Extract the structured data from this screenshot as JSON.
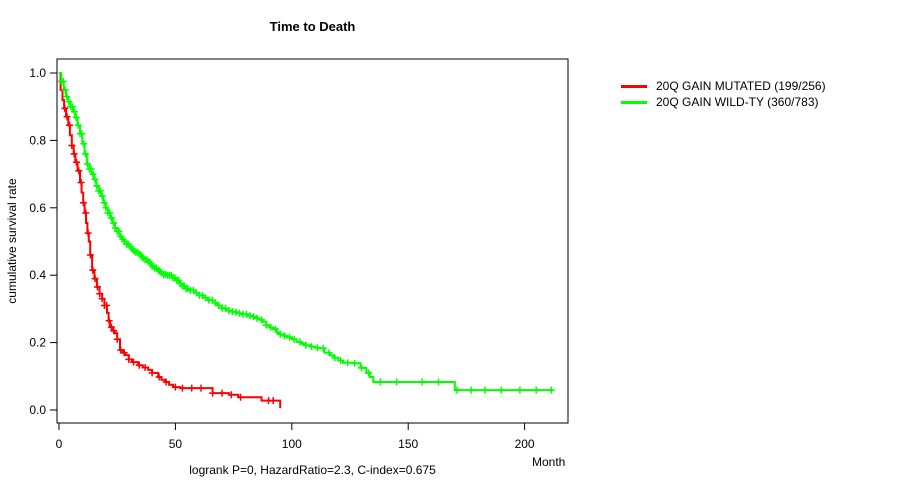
{
  "chart_data": {
    "type": "line",
    "subtype": "kaplan-meier-step",
    "title": "Time to Death",
    "xlabel": "Month",
    "ylabel": "cumulative survival rate",
    "caption": "logrank P=0, HazardRatio=2.3, C-index=0.675",
    "xlim": [
      0,
      215
    ],
    "ylim": [
      0.0,
      1.0
    ],
    "grid": false,
    "legend_position": "right-outside",
    "axis_color": "#000000",
    "background_color": "#FFFFFF",
    "xticks": [
      {
        "v": 0,
        "label": "0"
      },
      {
        "v": 50,
        "label": "50"
      },
      {
        "v": 100,
        "label": "100"
      },
      {
        "v": 150,
        "label": "150"
      },
      {
        "v": 200,
        "label": "200"
      }
    ],
    "yticks": [
      {
        "v": 0.0,
        "label": "0.0"
      },
      {
        "v": 0.2,
        "label": "0.2"
      },
      {
        "v": 0.4,
        "label": "0.4"
      },
      {
        "v": 0.6,
        "label": "0.6"
      },
      {
        "v": 0.8,
        "label": "0.8"
      },
      {
        "v": 1.0,
        "label": "1.0"
      }
    ],
    "series": [
      {
        "key": "mutated",
        "name": "20Q GAIN MUTATED (199/256)",
        "color": "#FF0000",
        "points": [
          [
            0,
            1.0
          ],
          [
            0.7,
            0.95
          ],
          [
            1.5,
            0.92
          ],
          [
            2.2,
            0.895
          ],
          [
            3,
            0.87
          ],
          [
            4,
            0.845
          ],
          [
            4.7,
            0.815
          ],
          [
            5.5,
            0.785
          ],
          [
            6.3,
            0.76
          ],
          [
            7,
            0.735
          ],
          [
            8,
            0.71
          ],
          [
            9,
            0.675
          ],
          [
            9.7,
            0.645
          ],
          [
            10.4,
            0.615
          ],
          [
            11,
            0.585
          ],
          [
            11.6,
            0.555
          ],
          [
            12.2,
            0.525
          ],
          [
            12.8,
            0.5
          ],
          [
            13.4,
            0.46
          ],
          [
            14.2,
            0.415
          ],
          [
            15.2,
            0.39
          ],
          [
            16.3,
            0.365
          ],
          [
            17.4,
            0.345
          ],
          [
            18.5,
            0.33
          ],
          [
            19.5,
            0.31
          ],
          [
            20.6,
            0.288
          ],
          [
            21.3,
            0.265
          ],
          [
            21.9,
            0.246
          ],
          [
            23,
            0.235
          ],
          [
            24.1,
            0.228
          ],
          [
            25,
            0.21
          ],
          [
            26.2,
            0.178
          ],
          [
            27.3,
            0.17
          ],
          [
            28.4,
            0.163
          ],
          [
            30,
            0.15
          ],
          [
            31.4,
            0.142
          ],
          [
            34,
            0.133
          ],
          [
            36,
            0.126
          ],
          [
            38.3,
            0.119
          ],
          [
            40,
            0.11
          ],
          [
            42.6,
            0.098
          ],
          [
            44,
            0.09
          ],
          [
            45.6,
            0.083
          ],
          [
            47.3,
            0.075
          ],
          [
            49,
            0.068
          ],
          [
            52,
            0.065
          ],
          [
            66,
            0.05
          ],
          [
            73,
            0.045
          ],
          [
            77,
            0.038
          ],
          [
            87,
            0.028
          ],
          [
            95,
            0.005
          ]
        ],
        "censor_months": [
          2.5,
          3.5,
          4.5,
          5.5,
          6.5,
          7.5,
          8.5,
          9.5,
          10.5,
          11.5,
          12.5,
          13.5,
          14.5,
          15.5,
          16.5,
          17.5,
          18.5,
          19.5,
          20.5,
          21.5,
          22.5,
          23.5,
          25,
          26.5,
          28,
          30,
          32,
          34.5,
          37,
          40,
          43,
          46,
          50,
          53,
          57,
          61,
          66,
          70,
          74,
          78,
          90,
          92
        ]
      },
      {
        "key": "wildtype",
        "name": "20Q GAIN WILD-TY (360/783)",
        "color": "#00FF00",
        "points": [
          [
            0,
            1.0
          ],
          [
            1,
            0.975
          ],
          [
            2,
            0.95
          ],
          [
            3,
            0.93
          ],
          [
            4,
            0.915
          ],
          [
            5,
            0.9
          ],
          [
            6,
            0.885
          ],
          [
            7,
            0.868
          ],
          [
            8,
            0.845
          ],
          [
            9,
            0.82
          ],
          [
            10,
            0.79
          ],
          [
            11,
            0.76
          ],
          [
            12,
            0.73
          ],
          [
            13,
            0.715
          ],
          [
            14,
            0.7
          ],
          [
            15,
            0.685
          ],
          [
            16,
            0.665
          ],
          [
            17,
            0.65
          ],
          [
            18,
            0.635
          ],
          [
            19,
            0.615
          ],
          [
            20,
            0.6
          ],
          [
            21,
            0.585
          ],
          [
            22,
            0.57
          ],
          [
            23,
            0.555
          ],
          [
            24,
            0.54
          ],
          [
            25,
            0.53
          ],
          [
            26,
            0.515
          ],
          [
            27,
            0.507
          ],
          [
            28,
            0.5
          ],
          [
            29,
            0.492
          ],
          [
            30,
            0.485
          ],
          [
            31,
            0.478
          ],
          [
            32,
            0.472
          ],
          [
            33,
            0.468
          ],
          [
            34,
            0.463
          ],
          [
            35,
            0.457
          ],
          [
            36,
            0.451
          ],
          [
            37,
            0.446
          ],
          [
            38,
            0.44
          ],
          [
            39,
            0.434
          ],
          [
            40,
            0.427
          ],
          [
            41,
            0.421
          ],
          [
            42,
            0.416
          ],
          [
            43,
            0.411
          ],
          [
            44,
            0.406
          ],
          [
            45,
            0.402
          ],
          [
            46.5,
            0.4
          ],
          [
            48.5,
            0.392
          ],
          [
            50,
            0.385
          ],
          [
            51.5,
            0.375
          ],
          [
            53,
            0.368
          ],
          [
            54.5,
            0.36
          ],
          [
            56,
            0.355
          ],
          [
            58,
            0.348
          ],
          [
            60,
            0.34
          ],
          [
            62,
            0.333
          ],
          [
            64,
            0.326
          ],
          [
            66,
            0.318
          ],
          [
            68,
            0.31
          ],
          [
            70,
            0.302
          ],
          [
            72,
            0.295
          ],
          [
            74,
            0.292
          ],
          [
            76,
            0.29
          ],
          [
            77.5,
            0.287
          ],
          [
            79,
            0.284
          ],
          [
            81,
            0.28
          ],
          [
            83,
            0.277
          ],
          [
            85,
            0.272
          ],
          [
            86,
            0.268
          ],
          [
            87.5,
            0.262
          ],
          [
            89,
            0.252
          ],
          [
            90.5,
            0.245
          ],
          [
            92,
            0.24
          ],
          [
            93.5,
            0.23
          ],
          [
            95,
            0.225
          ],
          [
            96.5,
            0.22
          ],
          [
            98,
            0.216
          ],
          [
            100,
            0.21
          ],
          [
            102,
            0.202
          ],
          [
            104,
            0.197
          ],
          [
            106,
            0.192
          ],
          [
            108,
            0.188
          ],
          [
            110,
            0.185
          ],
          [
            112,
            0.183
          ],
          [
            114,
            0.17
          ],
          [
            116.5,
            0.162
          ],
          [
            118,
            0.155
          ],
          [
            120,
            0.147
          ],
          [
            122,
            0.14
          ],
          [
            127,
            0.139
          ],
          [
            129.5,
            0.125
          ],
          [
            132,
            0.11
          ],
          [
            133.5,
            0.098
          ],
          [
            135,
            0.083
          ],
          [
            170,
            0.059
          ],
          [
            212,
            0.059
          ]
        ],
        "censor_months": [
          1,
          1.8,
          2.6,
          3.4,
          4.2,
          5,
          5.8,
          6.6,
          7.4,
          8.2,
          9,
          9.8,
          10.6,
          11.4,
          12.2,
          13,
          13.8,
          14.6,
          15.4,
          16.2,
          17,
          17.8,
          18.6,
          19.4,
          20.2,
          21,
          21.8,
          22.6,
          23.4,
          24.2,
          25,
          25.8,
          26.6,
          27.4,
          28.2,
          29,
          29.8,
          30.6,
          31.4,
          32.2,
          33,
          33.8,
          34.6,
          35.4,
          36.2,
          37,
          37.8,
          38.6,
          39.4,
          40.2,
          41,
          41.8,
          42.6,
          43.4,
          44.2,
          45,
          45.8,
          46.6,
          47.4,
          48.2,
          49,
          49.8,
          50.6,
          51.4,
          52.2,
          53,
          53.8,
          54.6,
          55.4,
          56.5,
          57.7,
          59,
          60.3,
          61.6,
          63,
          64.4,
          65.8,
          67.2,
          68.6,
          70,
          71.5,
          73,
          74.5,
          76,
          77.5,
          79,
          80.5,
          82,
          83.5,
          85,
          87,
          89,
          91,
          93,
          95,
          97,
          99,
          101,
          103.5,
          106,
          108.5,
          111,
          113.5,
          116,
          118.5,
          121,
          124,
          127,
          130,
          133,
          138,
          145,
          156,
          163,
          171,
          177,
          183,
          190,
          198,
          205,
          211.5
        ]
      }
    ]
  }
}
